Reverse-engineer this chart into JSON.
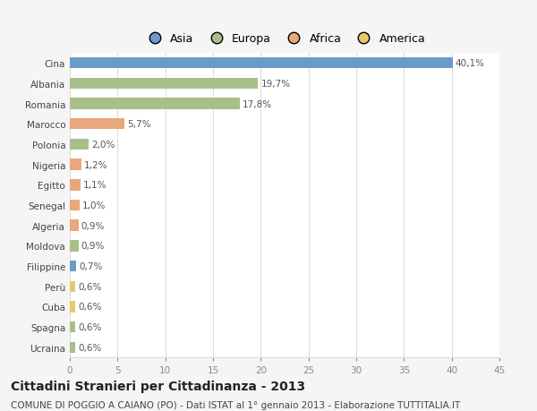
{
  "categories": [
    "Cina",
    "Albania",
    "Romania",
    "Marocco",
    "Polonia",
    "Nigeria",
    "Egitto",
    "Senegal",
    "Algeria",
    "Moldova",
    "Filippine",
    "Perù",
    "Cuba",
    "Spagna",
    "Ucraina"
  ],
  "values": [
    40.1,
    19.7,
    17.8,
    5.7,
    2.0,
    1.2,
    1.1,
    1.0,
    0.9,
    0.9,
    0.7,
    0.6,
    0.6,
    0.6,
    0.6
  ],
  "labels": [
    "40,1%",
    "19,7%",
    "17,8%",
    "5,7%",
    "2,0%",
    "1,2%",
    "1,1%",
    "1,0%",
    "0,9%",
    "0,9%",
    "0,7%",
    "0,6%",
    "0,6%",
    "0,6%",
    "0,6%"
  ],
  "colors": [
    "#6b9bc9",
    "#a8bf8a",
    "#a8bf8a",
    "#e8a87a",
    "#a8bf8a",
    "#e8a87a",
    "#e8a87a",
    "#e8a87a",
    "#e8a87a",
    "#a8bf8a",
    "#6b9bc9",
    "#e8c86a",
    "#e8c86a",
    "#a8bf8a",
    "#a8bf8a"
  ],
  "legend_labels": [
    "Asia",
    "Europa",
    "Africa",
    "America"
  ],
  "legend_colors": [
    "#6b9bc9",
    "#a8bf8a",
    "#e8a87a",
    "#e8c86a"
  ],
  "xlim": [
    0,
    45
  ],
  "xticks": [
    0,
    5,
    10,
    15,
    20,
    25,
    30,
    35,
    40,
    45
  ],
  "title": "Cittadini Stranieri per Cittadinanza - 2013",
  "subtitle": "COMUNE DI POGGIO A CAIANO (PO) - Dati ISTAT al 1° gennaio 2013 - Elaborazione TUTTITALIA.IT",
  "background_color": "#f5f5f5",
  "plot_bg_color": "#ffffff",
  "grid_color": "#dddddd",
  "bar_height": 0.55,
  "label_fontsize": 7.5,
  "tick_fontsize": 7.5,
  "legend_fontsize": 9,
  "title_fontsize": 10,
  "subtitle_fontsize": 7.5
}
